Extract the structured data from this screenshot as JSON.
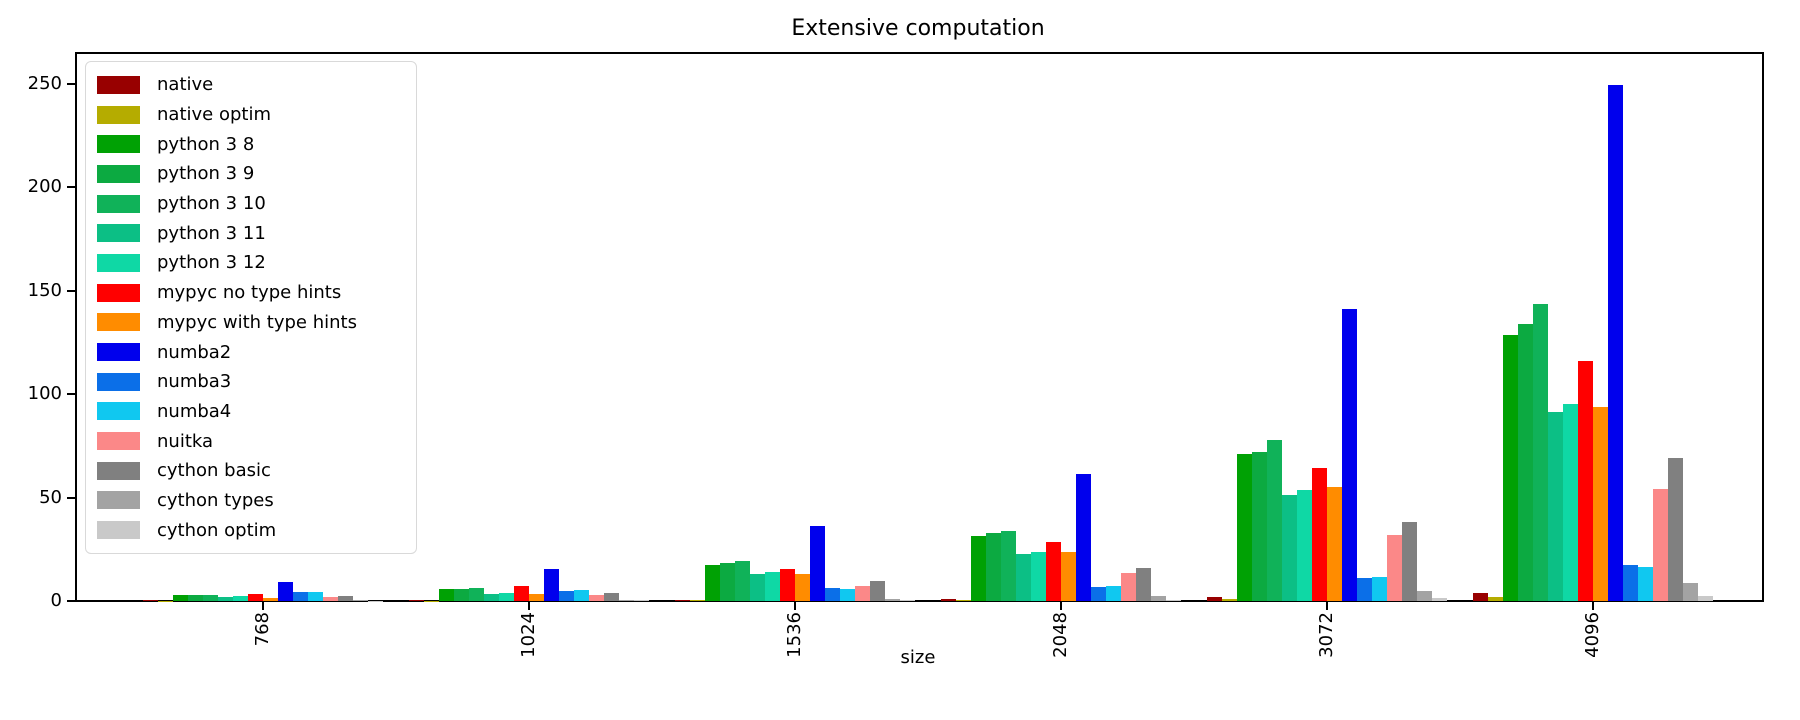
{
  "chart_data": {
    "type": "bar",
    "title": "Extensive computation",
    "xlabel": "size",
    "ylabel": "",
    "grid": false,
    "legend_position": "upper left",
    "categories": [
      "768",
      "1024",
      "1536",
      "2048",
      "3072",
      "4096"
    ],
    "yticks": [
      "0",
      "50",
      "100",
      "150",
      "200",
      "250"
    ],
    "ylim": [
      0,
      265
    ],
    "series": [
      {
        "name": "native",
        "color": "#980000",
        "values": [
          0.3,
          0.3,
          0.5,
          0.9,
          2.1,
          3.9
        ]
      },
      {
        "name": "native optim",
        "color": "#b5ac00",
        "values": [
          0.2,
          0.2,
          0.3,
          0.4,
          1.0,
          1.9
        ]
      },
      {
        "name": "python 3 8",
        "color": "#00a104",
        "values": [
          2.7,
          5.8,
          17.5,
          31.3,
          71.0,
          128.5
        ]
      },
      {
        "name": "python 3 9",
        "color": "#0caa41",
        "values": [
          2.7,
          5.7,
          18.4,
          32.8,
          72.0,
          133.8
        ]
      },
      {
        "name": "python 3 10",
        "color": "#10b259",
        "values": [
          2.8,
          6.1,
          19.4,
          34.0,
          77.8,
          143.5
        ]
      },
      {
        "name": "python 3 11",
        "color": "#0cbf85",
        "values": [
          1.8,
          3.3,
          13.0,
          22.5,
          51.5,
          91.3
        ]
      },
      {
        "name": "python 3 12",
        "color": "#0fd8a5",
        "values": [
          2.2,
          3.9,
          13.8,
          23.8,
          53.5,
          95.5
        ]
      },
      {
        "name": "mypyc no type hints",
        "color": "#ff0000",
        "values": [
          3.2,
          7.2,
          15.6,
          28.3,
          64.3,
          116.0
        ]
      },
      {
        "name": "mypyc with type hints",
        "color": "#ff8c00",
        "values": [
          1.3,
          3.2,
          13.2,
          23.9,
          55.0,
          93.8
        ]
      },
      {
        "name": "numba2",
        "color": "#0000ed",
        "values": [
          9.4,
          15.4,
          36.2,
          61.5,
          141.3,
          249.5
        ]
      },
      {
        "name": "numba3",
        "color": "#0b6fe8",
        "values": [
          4.5,
          4.9,
          6.3,
          7.0,
          11.1,
          17.2
        ]
      },
      {
        "name": "numba4",
        "color": "#10c8f0",
        "values": [
          4.2,
          5.2,
          5.9,
          7.4,
          11.4,
          16.5
        ]
      },
      {
        "name": "nuitka",
        "color": "#fb8888",
        "values": [
          1.8,
          2.8,
          7.4,
          13.7,
          31.9,
          54.0
        ]
      },
      {
        "name": "cython basic",
        "color": "#808080",
        "values": [
          2.4,
          4.0,
          9.5,
          16.1,
          38.4,
          69.3
        ]
      },
      {
        "name": "cython types",
        "color": "#a3a3a3",
        "values": [
          0.4,
          0.6,
          1.2,
          2.4,
          4.9,
          8.9
        ]
      },
      {
        "name": "cython optim",
        "color": "#c9c9c9",
        "values": [
          0.2,
          0.3,
          0.6,
          0.5,
          1.6,
          2.5
        ]
      }
    ]
  }
}
